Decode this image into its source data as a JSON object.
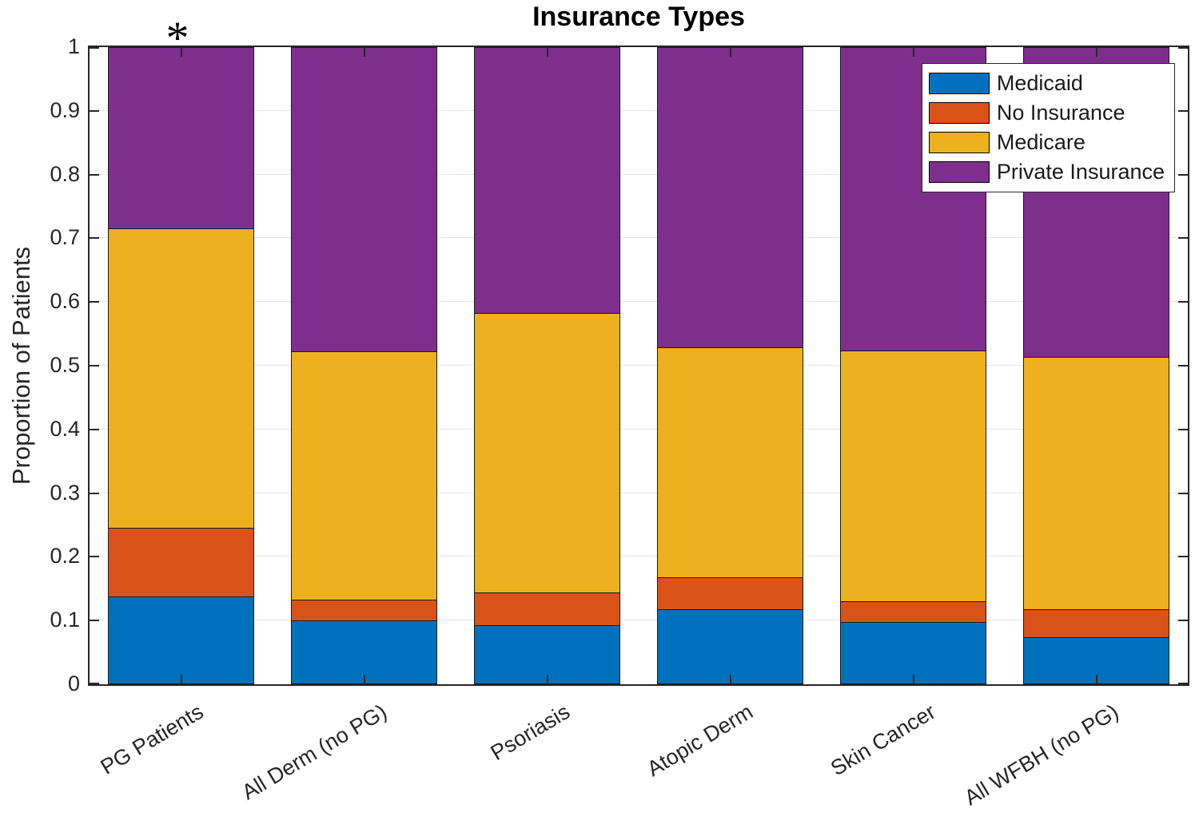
{
  "title": "Insurance Types",
  "ylabel": "Proportion of Patients",
  "annotation": {
    "text": "*",
    "category_index": 0,
    "meaning": "significance-marker-above-first-bar"
  },
  "axis": {
    "ytick_labels": [
      "0",
      "0.1",
      "0.2",
      "0.3",
      "0.4",
      "0.5",
      "0.6",
      "0.7",
      "0.8",
      "0.9",
      "1"
    ],
    "ytick_values": [
      0,
      0.1,
      0.2,
      0.3,
      0.4,
      0.5,
      0.6,
      0.7,
      0.8,
      0.9,
      1
    ],
    "axis_color": "#262626",
    "grid_color": "#e6e6e6"
  },
  "legend": {
    "position": "top-right"
  },
  "chart_data": {
    "type": "bar",
    "stacked": true,
    "title": "Insurance Types",
    "xlabel": "",
    "ylabel": "Proportion of Patients",
    "ylim": [
      0,
      1
    ],
    "grid": "horizontal",
    "legend_position": "top-right",
    "bar_width_fraction": 0.8,
    "categories": [
      "PG Patients",
      "All Derm (no PG)",
      "Psoriasis",
      "Atopic Derm",
      "Skin Cancer",
      "All WFBH (no PG)"
    ],
    "series": [
      {
        "name": "Medicaid",
        "color": "#0072BD",
        "values": [
          0.139,
          0.101,
          0.093,
          0.119,
          0.099,
          0.075
        ]
      },
      {
        "name": "No Insurance",
        "color": "#D95319",
        "values": [
          0.107,
          0.032,
          0.052,
          0.05,
          0.032,
          0.044
        ]
      },
      {
        "name": "Medicare",
        "color": "#EDB120",
        "values": [
          0.47,
          0.39,
          0.438,
          0.36,
          0.393,
          0.396
        ]
      },
      {
        "name": "Private Insurance",
        "color": "#7E2F8E",
        "values": [
          0.284,
          0.477,
          0.417,
          0.471,
          0.476,
          0.485
        ]
      }
    ],
    "cumulative_tops_note": "per-bar cumulative boundaries read from gridlines",
    "cumulative_tops": {
      "medicaid": [
        0.139,
        0.101,
        0.093,
        0.119,
        0.099,
        0.075
      ],
      "no_insurance": [
        0.246,
        0.133,
        0.145,
        0.169,
        0.131,
        0.119
      ],
      "medicare": [
        0.716,
        0.523,
        0.583,
        0.529,
        0.524,
        0.515
      ],
      "private_insurance": [
        1.0,
        1.0,
        1.0,
        1.0,
        1.0,
        1.0
      ]
    }
  }
}
